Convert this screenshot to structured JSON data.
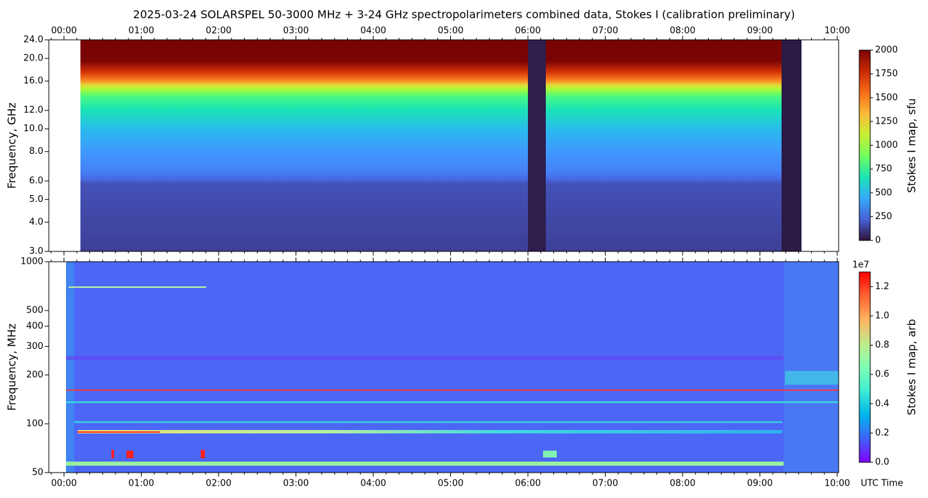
{
  "chart_data": [
    {
      "type": "heatmap",
      "title": "2025-03-24  SOLARSPEL  50-3000 MHz  +  3-24 GHz  spectropolarimeters combined data,  Stokes I  (calibration preliminary)",
      "ylabel": "Frequency, GHz",
      "xlim": [
        -0.196,
        10.018
      ],
      "xticks": [
        {
          "value": 0,
          "label": "00:00"
        },
        {
          "value": 1,
          "label": "01:00"
        },
        {
          "value": 2,
          "label": "02:00"
        },
        {
          "value": 3,
          "label": "03:00"
        },
        {
          "value": 4,
          "label": "04:00"
        },
        {
          "value": 5,
          "label": "05:00"
        },
        {
          "value": 6,
          "label": "06:00"
        },
        {
          "value": 7,
          "label": "07:00"
        },
        {
          "value": 8,
          "label": "08:00"
        },
        {
          "value": 9,
          "label": "09:00"
        },
        {
          "value": 10,
          "label": "10:00"
        }
      ],
      "ylim": [
        3,
        24
      ],
      "yscale": "log",
      "yticks": [
        {
          "value": 3,
          "label": "3.0"
        },
        {
          "value": 4,
          "label": "4.0"
        },
        {
          "value": 5,
          "label": "5.0"
        },
        {
          "value": 6,
          "label": "6.0"
        },
        {
          "value": 8,
          "label": "8.0"
        },
        {
          "value": 10,
          "label": "10.0"
        },
        {
          "value": 12,
          "label": "12.0"
        },
        {
          "value": 16,
          "label": "16.0"
        },
        {
          "value": 20,
          "label": "20.0"
        },
        {
          "value": 24,
          "label": "24.0"
        }
      ],
      "colorbar": {
        "label": "Stokes I map, sfu",
        "clim": [
          0,
          2000
        ],
        "ticks": [
          0,
          250,
          500,
          750,
          1000,
          1250,
          1500,
          1750,
          2000
        ],
        "colormap": [
          "#30123b",
          "#4662d7",
          "#36aaf9",
          "#1ae4b6",
          "#72fe5e",
          "#c7ef34",
          "#fabb39",
          "#f66b19",
          "#ca2a04",
          "#7a0403"
        ]
      }
    },
    {
      "type": "heatmap",
      "ylabel": "Frequency, MHz",
      "xlabel": "UTC Time",
      "xlim": [
        -0.196,
        10.018
      ],
      "xticks": [
        {
          "value": 0,
          "label": "00:00"
        },
        {
          "value": 1,
          "label": "01:00"
        },
        {
          "value": 2,
          "label": "02:00"
        },
        {
          "value": 3,
          "label": "03:00"
        },
        {
          "value": 4,
          "label": "04:00"
        },
        {
          "value": 5,
          "label": "05:00"
        },
        {
          "value": 6,
          "label": "06:00"
        },
        {
          "value": 7,
          "label": "07:00"
        },
        {
          "value": 8,
          "label": "08:00"
        },
        {
          "value": 9,
          "label": "09:00"
        },
        {
          "value": 10,
          "label": "10:00"
        }
      ],
      "ylim": [
        50,
        1000
      ],
      "yscale": "log",
      "yticks": [
        50,
        100,
        200,
        300,
        400,
        500,
        1000
      ],
      "colorbar": {
        "label": "Stokes I map, arb",
        "clim": [
          0,
          13000000
        ],
        "offset_label": "1e7",
        "ticks": [
          {
            "value": 0,
            "label": "0.0"
          },
          {
            "value": 2000000,
            "label": "0.2"
          },
          {
            "value": 4000000,
            "label": "0.4"
          },
          {
            "value": 6000000,
            "label": "0.6"
          },
          {
            "value": 8000000,
            "label": "0.8"
          },
          {
            "value": 10000000,
            "label": "1.0"
          },
          {
            "value": 12000000,
            "label": "1.2"
          }
        ],
        "colormap": [
          "#8000ff",
          "#4062fa",
          "#00b5eb",
          "#40ecd4",
          "#80ffb4",
          "#c0eb8d",
          "#ffb360",
          "#ff6231",
          "#ff0000"
        ]
      }
    }
  ]
}
